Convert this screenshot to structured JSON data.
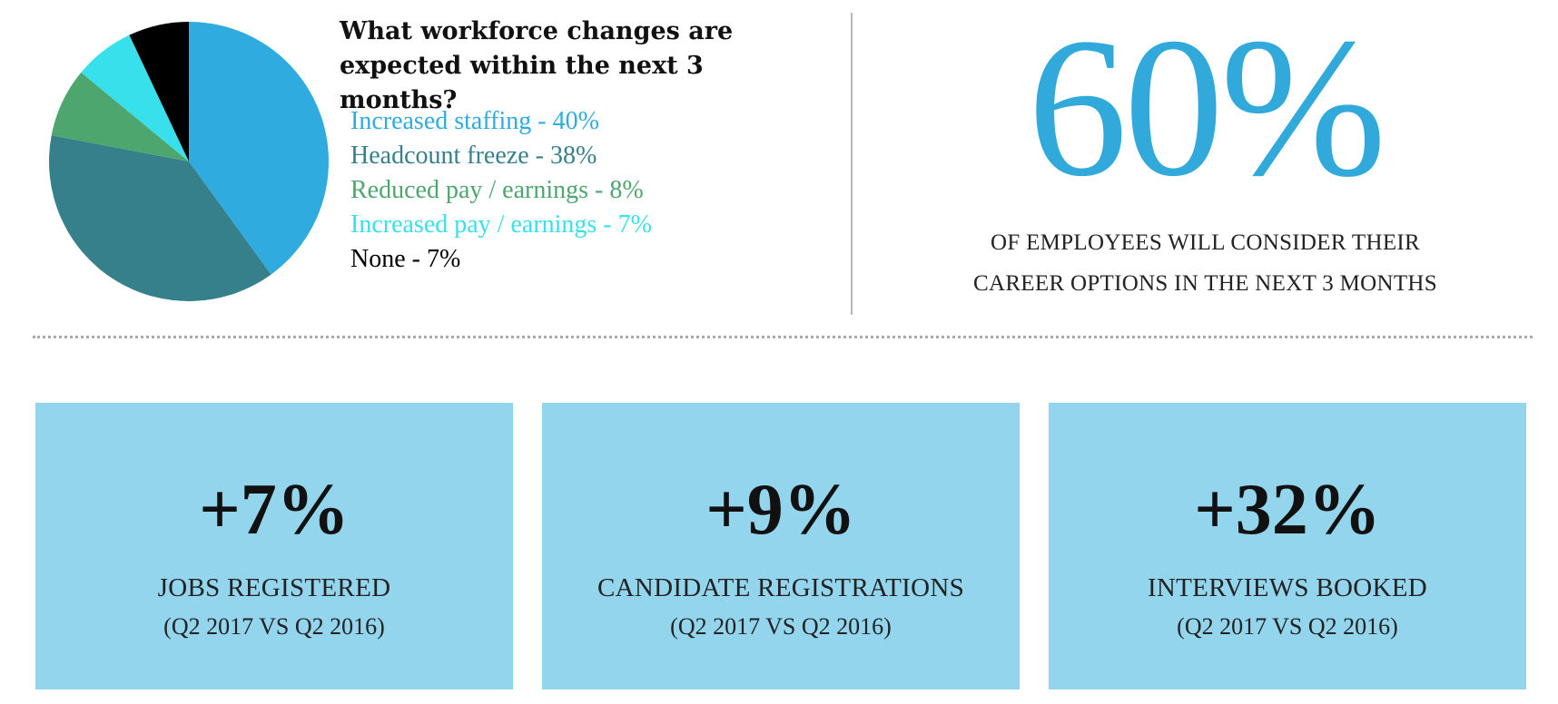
{
  "chart_data": {
    "type": "pie",
    "title": "What workforce changes are expected within the next 3 months?",
    "slices": [
      {
        "label": "Increased staffing",
        "value": 40,
        "color": "#2fabdf",
        "legend": "Increased staffing - 40%"
      },
      {
        "label": "Headcount freeze",
        "value": 38,
        "color": "#35808a",
        "legend": "Headcount freeze - 38%"
      },
      {
        "label": "Reduced pay / earnings",
        "value": 8,
        "color": "#4ea66f",
        "legend": "Reduced pay / earnings - 8%"
      },
      {
        "label": "Increased pay / earnings",
        "value": 7,
        "color": "#38e0ec",
        "legend": "Increased pay / earnings - 7%"
      },
      {
        "label": "None",
        "value": 7,
        "color": "#000000",
        "legend": "None - 7%"
      }
    ]
  },
  "headline_stat": {
    "value": "60%",
    "caption_line1": "OF EMPLOYEES WILL CONSIDER THEIR",
    "caption_line2": "CAREER OPTIONS IN THE NEXT 3 MONTHS",
    "color": "#31a9db"
  },
  "cards": [
    {
      "value": "+7%",
      "label": "JOBS REGISTERED",
      "period": "(Q2 2017 VS Q2 2016)"
    },
    {
      "value": "+9%",
      "label": "CANDIDATE REGISTRATIONS",
      "period": "(Q2 2017 VS Q2 2016)"
    },
    {
      "value": "+32%",
      "label": "INTERVIEWS BOOKED",
      "period": "(Q2 2017 VS Q2 2016)"
    }
  ],
  "colors": {
    "card_background": "#92d5ed",
    "divider": "#b8b8b8"
  }
}
